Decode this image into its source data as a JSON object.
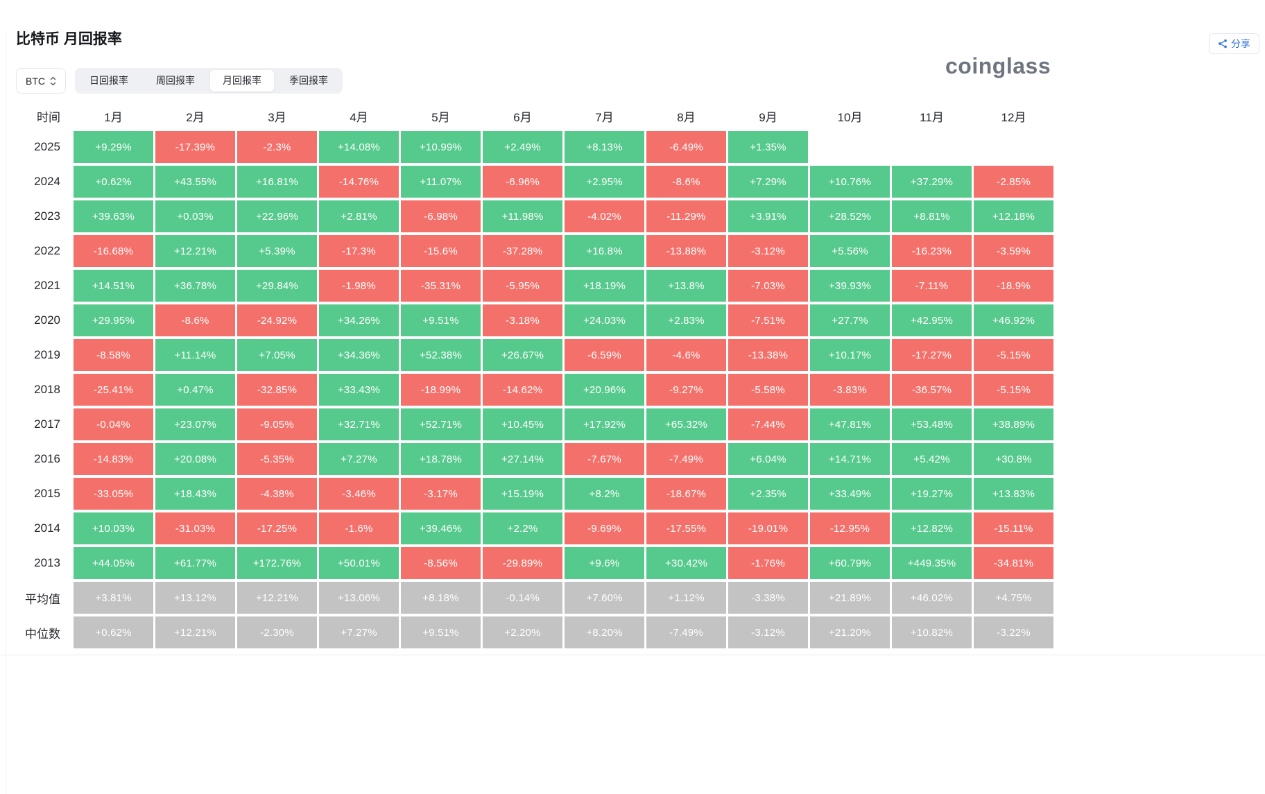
{
  "header": {
    "title": "比特币 月回报率",
    "share_label": "分享",
    "logo": "coinglass"
  },
  "controls": {
    "coin": "BTC",
    "tabs": [
      {
        "name": "daily",
        "label": "日回报率",
        "selected": false
      },
      {
        "name": "weekly",
        "label": "周回报率",
        "selected": false
      },
      {
        "name": "monthly",
        "label": "月回报率",
        "selected": true
      },
      {
        "name": "quarterly",
        "label": "季回报率",
        "selected": false
      }
    ]
  },
  "table": {
    "time_header": "时间",
    "month_headers": [
      "1月",
      "2月",
      "3月",
      "4月",
      "5月",
      "6月",
      "7月",
      "8月",
      "9月",
      "10月",
      "11月",
      "12月"
    ],
    "rows": [
      {
        "label": "2025",
        "stat": false,
        "values": [
          "+9.29%",
          "-17.39%",
          "-2.3%",
          "+14.08%",
          "+10.99%",
          "+2.49%",
          "+8.13%",
          "-6.49%",
          "+1.35%",
          "",
          "",
          ""
        ]
      },
      {
        "label": "2024",
        "stat": false,
        "values": [
          "+0.62%",
          "+43.55%",
          "+16.81%",
          "-14.76%",
          "+11.07%",
          "-6.96%",
          "+2.95%",
          "-8.6%",
          "+7.29%",
          "+10.76%",
          "+37.29%",
          "-2.85%"
        ]
      },
      {
        "label": "2023",
        "stat": false,
        "values": [
          "+39.63%",
          "+0.03%",
          "+22.96%",
          "+2.81%",
          "-6.98%",
          "+11.98%",
          "-4.02%",
          "-11.29%",
          "+3.91%",
          "+28.52%",
          "+8.81%",
          "+12.18%"
        ]
      },
      {
        "label": "2022",
        "stat": false,
        "values": [
          "-16.68%",
          "+12.21%",
          "+5.39%",
          "-17.3%",
          "-15.6%",
          "-37.28%",
          "+16.8%",
          "-13.88%",
          "-3.12%",
          "+5.56%",
          "-16.23%",
          "-3.59%"
        ]
      },
      {
        "label": "2021",
        "stat": false,
        "values": [
          "+14.51%",
          "+36.78%",
          "+29.84%",
          "-1.98%",
          "-35.31%",
          "-5.95%",
          "+18.19%",
          "+13.8%",
          "-7.03%",
          "+39.93%",
          "-7.11%",
          "-18.9%"
        ]
      },
      {
        "label": "2020",
        "stat": false,
        "values": [
          "+29.95%",
          "-8.6%",
          "-24.92%",
          "+34.26%",
          "+9.51%",
          "-3.18%",
          "+24.03%",
          "+2.83%",
          "-7.51%",
          "+27.7%",
          "+42.95%",
          "+46.92%"
        ]
      },
      {
        "label": "2019",
        "stat": false,
        "values": [
          "-8.58%",
          "+11.14%",
          "+7.05%",
          "+34.36%",
          "+52.38%",
          "+26.67%",
          "-6.59%",
          "-4.6%",
          "-13.38%",
          "+10.17%",
          "-17.27%",
          "-5.15%"
        ]
      },
      {
        "label": "2018",
        "stat": false,
        "values": [
          "-25.41%",
          "+0.47%",
          "-32.85%",
          "+33.43%",
          "-18.99%",
          "-14.62%",
          "+20.96%",
          "-9.27%",
          "-5.58%",
          "-3.83%",
          "-36.57%",
          "-5.15%"
        ]
      },
      {
        "label": "2017",
        "stat": false,
        "values": [
          "-0.04%",
          "+23.07%",
          "-9.05%",
          "+32.71%",
          "+52.71%",
          "+10.45%",
          "+17.92%",
          "+65.32%",
          "-7.44%",
          "+47.81%",
          "+53.48%",
          "+38.89%"
        ]
      },
      {
        "label": "2016",
        "stat": false,
        "values": [
          "-14.83%",
          "+20.08%",
          "-5.35%",
          "+7.27%",
          "+18.78%",
          "+27.14%",
          "-7.67%",
          "-7.49%",
          "+6.04%",
          "+14.71%",
          "+5.42%",
          "+30.8%"
        ]
      },
      {
        "label": "2015",
        "stat": false,
        "values": [
          "-33.05%",
          "+18.43%",
          "-4.38%",
          "-3.46%",
          "-3.17%",
          "+15.19%",
          "+8.2%",
          "-18.67%",
          "+2.35%",
          "+33.49%",
          "+19.27%",
          "+13.83%"
        ]
      },
      {
        "label": "2014",
        "stat": false,
        "values": [
          "+10.03%",
          "-31.03%",
          "-17.25%",
          "-1.6%",
          "+39.46%",
          "+2.2%",
          "-9.69%",
          "-17.55%",
          "-19.01%",
          "-12.95%",
          "+12.82%",
          "-15.11%"
        ]
      },
      {
        "label": "2013",
        "stat": false,
        "values": [
          "+44.05%",
          "+61.77%",
          "+172.76%",
          "+50.01%",
          "-8.56%",
          "-29.89%",
          "+9.6%",
          "+30.42%",
          "-1.76%",
          "+60.79%",
          "+449.35%",
          "-34.81%"
        ]
      },
      {
        "label": "平均值",
        "stat": true,
        "values": [
          "+3.81%",
          "+13.12%",
          "+12.21%",
          "+13.06%",
          "+8.18%",
          "-0.14%",
          "+7.60%",
          "+1.12%",
          "-3.38%",
          "+21.89%",
          "+46.02%",
          "+4.75%"
        ]
      },
      {
        "label": "中位数",
        "stat": true,
        "values": [
          "+0.62%",
          "+12.21%",
          "-2.30%",
          "+7.27%",
          "+9.51%",
          "+2.20%",
          "+8.20%",
          "-7.49%",
          "-3.12%",
          "+21.20%",
          "+10.82%",
          "-3.22%"
        ]
      }
    ]
  },
  "chart_data": {
    "type": "heatmap",
    "title": "比特币 月回报率",
    "unit": "%",
    "columns": [
      "1月",
      "2月",
      "3月",
      "4月",
      "5月",
      "6月",
      "7月",
      "8月",
      "9月",
      "10月",
      "11月",
      "12月"
    ],
    "rows": [
      "2025",
      "2024",
      "2023",
      "2022",
      "2021",
      "2020",
      "2019",
      "2018",
      "2017",
      "2016",
      "2015",
      "2014",
      "2013",
      "平均值",
      "中位数"
    ],
    "values": [
      [
        9.29,
        -17.39,
        -2.3,
        14.08,
        10.99,
        2.49,
        8.13,
        -6.49,
        1.35,
        null,
        null,
        null
      ],
      [
        0.62,
        43.55,
        16.81,
        -14.76,
        11.07,
        -6.96,
        2.95,
        -8.6,
        7.29,
        10.76,
        37.29,
        -2.85
      ],
      [
        39.63,
        0.03,
        22.96,
        2.81,
        -6.98,
        11.98,
        -4.02,
        -11.29,
        3.91,
        28.52,
        8.81,
        12.18
      ],
      [
        -16.68,
        12.21,
        5.39,
        -17.3,
        -15.6,
        -37.28,
        16.8,
        -13.88,
        -3.12,
        5.56,
        -16.23,
        -3.59
      ],
      [
        14.51,
        36.78,
        29.84,
        -1.98,
        -35.31,
        -5.95,
        18.19,
        13.8,
        -7.03,
        39.93,
        -7.11,
        -18.9
      ],
      [
        29.95,
        -8.6,
        -24.92,
        34.26,
        9.51,
        -3.18,
        24.03,
        2.83,
        -7.51,
        27.7,
        42.95,
        46.92
      ],
      [
        -8.58,
        11.14,
        7.05,
        34.36,
        52.38,
        26.67,
        -6.59,
        -4.6,
        -13.38,
        10.17,
        -17.27,
        -5.15
      ],
      [
        -25.41,
        0.47,
        -32.85,
        33.43,
        -18.99,
        -14.62,
        20.96,
        -9.27,
        -5.58,
        -3.83,
        -36.57,
        -5.15
      ],
      [
        -0.04,
        23.07,
        -9.05,
        32.71,
        52.71,
        10.45,
        17.92,
        65.32,
        -7.44,
        47.81,
        53.48,
        38.89
      ],
      [
        -14.83,
        20.08,
        -5.35,
        7.27,
        18.78,
        27.14,
        -7.67,
        -7.49,
        6.04,
        14.71,
        5.42,
        30.8
      ],
      [
        -33.05,
        18.43,
        -4.38,
        -3.46,
        -3.17,
        15.19,
        8.2,
        -18.67,
        2.35,
        33.49,
        19.27,
        13.83
      ],
      [
        10.03,
        -31.03,
        -17.25,
        -1.6,
        39.46,
        2.2,
        -9.69,
        -17.55,
        -19.01,
        -12.95,
        12.82,
        -15.11
      ],
      [
        44.05,
        61.77,
        172.76,
        50.01,
        -8.56,
        -29.89,
        9.6,
        30.42,
        -1.76,
        60.79,
        449.35,
        -34.81
      ],
      [
        3.81,
        13.12,
        12.21,
        13.06,
        8.18,
        -0.14,
        7.6,
        1.12,
        -3.38,
        21.89,
        46.02,
        4.75
      ],
      [
        0.62,
        12.21,
        -2.3,
        7.27,
        9.51,
        2.2,
        8.2,
        -7.49,
        -3.12,
        21.2,
        10.82,
        -3.22
      ]
    ],
    "legend": {
      "positive_color": "#56ca8d",
      "negative_color": "#f4716b",
      "stat_row_color": "#c3c3c3"
    }
  },
  "colors": {
    "positive": "#56ca8d",
    "negative": "#f4716b",
    "stat": "#c3c3c3",
    "link": "#3173dd"
  }
}
